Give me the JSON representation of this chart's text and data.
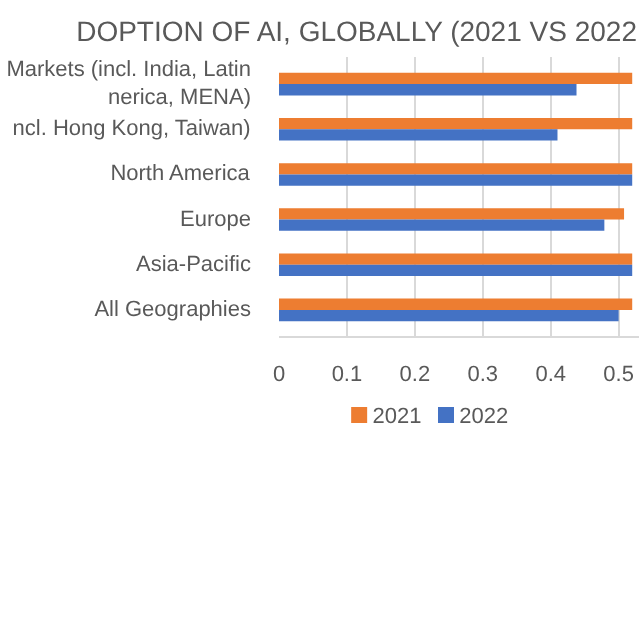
{
  "chart_data": {
    "type": "bar",
    "orientation": "horizontal",
    "title": "DOPTION OF AI, GLOBALLY (2021 VS 2022",
    "categories": [
      "Markets (incl. India, Latin\nnerica, MENA)",
      "ncl. Hong Kong, Taiwan)",
      "North America",
      "Europe",
      "Asia-Pacific",
      "All Geographies"
    ],
    "series": [
      {
        "name": "2021",
        "color": "#ed7d31",
        "values": [
          0.52,
          0.52,
          0.52,
          0.508,
          0.52,
          0.52
        ]
      },
      {
        "name": "2022",
        "color": "#4472c4",
        "values": [
          0.438,
          0.41,
          0.52,
          0.479,
          0.52,
          0.5
        ]
      }
    ],
    "xlim": [
      0,
      0.53
    ],
    "xticks": [
      0,
      0.1,
      0.2,
      0.3,
      0.4,
      0.5
    ],
    "grid": "x",
    "legend": "bottom"
  }
}
